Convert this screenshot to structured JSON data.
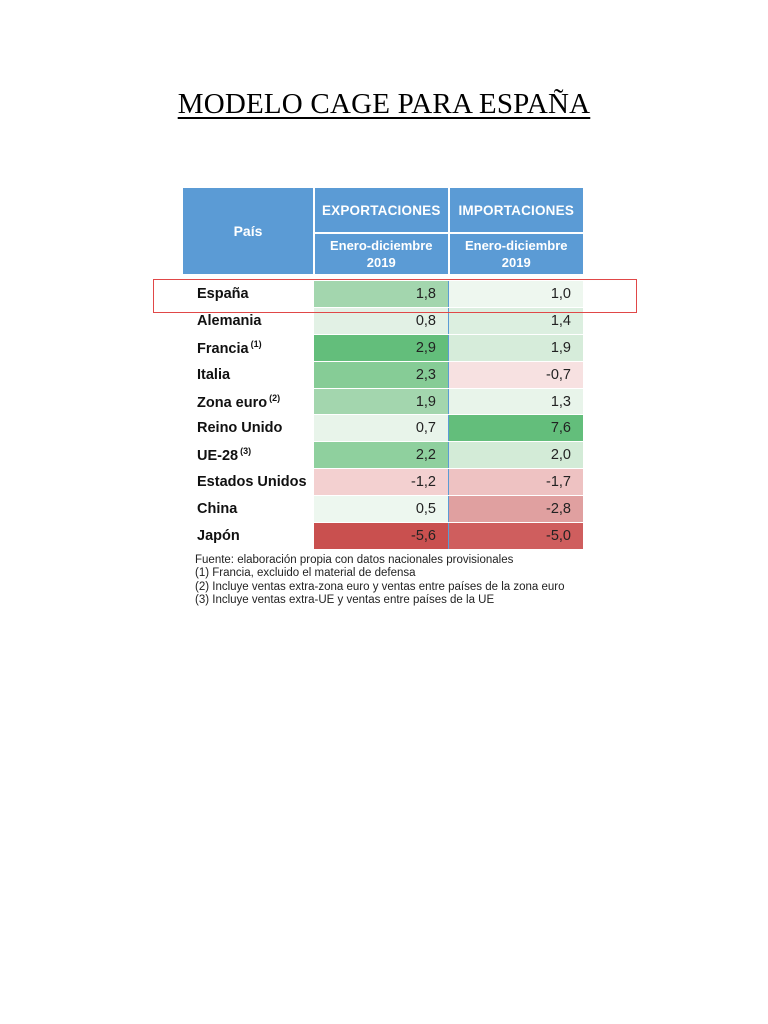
{
  "document": {
    "title": "MODELO CAGE PARA ESPAÑA"
  },
  "table": {
    "headers": {
      "country": "País",
      "exports": "EXPORTACIONES",
      "imports": "IMPORTACIONES",
      "exports_period_line1": "Enero-diciembre",
      "exports_period_line2": "2019",
      "imports_period_line1": "Enero-diciembre",
      "imports_period_line2": "2019"
    },
    "rows": [
      {
        "country": "España",
        "note": "",
        "exports": "1,8",
        "imports": "1,0",
        "exports_color": "#a3d6ae",
        "imports_color": "#eef7ef"
      },
      {
        "country": "Alemania",
        "note": "",
        "exports": "0,8",
        "imports": "1,4",
        "exports_color": "#e2f1e5",
        "imports_color": "#dcefe0"
      },
      {
        "country": "Francia",
        "note": "(1)",
        "exports": "2,9",
        "imports": "1,9",
        "exports_color": "#63be7b",
        "imports_color": "#d6ecda"
      },
      {
        "country": "Italia",
        "note": "",
        "exports": "2,3",
        "imports": "-0,7",
        "exports_color": "#86cc96",
        "imports_color": "#f7e1e1"
      },
      {
        "country": "Zona euro",
        "note": "(2)",
        "exports": "1,9",
        "imports": "1,3",
        "exports_color": "#a3d6ae",
        "imports_color": "#e8f4ea"
      },
      {
        "country": "Reino Unido",
        "note": "",
        "exports": "0,7",
        "imports": "7,6",
        "exports_color": "#e8f4ea",
        "imports_color": "#63be7b"
      },
      {
        "country": "UE-28",
        "note": "(3)",
        "exports": "2,2",
        "imports": "2,0",
        "exports_color": "#8fd09e",
        "imports_color": "#d3ebd7"
      },
      {
        "country": "Estados Unidos",
        "note": "",
        "exports": "-1,2",
        "imports": "-1,7",
        "exports_color": "#f3d0d0",
        "imports_color": "#eec2c2"
      },
      {
        "country": "China",
        "note": "",
        "exports": "0,5",
        "imports": "-2,8",
        "exports_color": "#edf7ef",
        "imports_color": "#e0a0a0"
      },
      {
        "country": "Japón",
        "note": "",
        "exports": "-5,6",
        "imports": "-5,0",
        "exports_color": "#c9504f",
        "imports_color": "#cf5e5e"
      }
    ]
  },
  "notes": {
    "source": "Fuente: elaboración propia con datos nacionales provisionales",
    "note1": "(1) Francia, excluido el material de defensa",
    "note2": "(2) Incluye ventas extra-zona euro y ventas entre países de la zona euro",
    "note3": "(3) Incluye ventas extra-UE y ventas entre países de la UE"
  },
  "highlight": {
    "row": "España",
    "color": "#e04848"
  }
}
